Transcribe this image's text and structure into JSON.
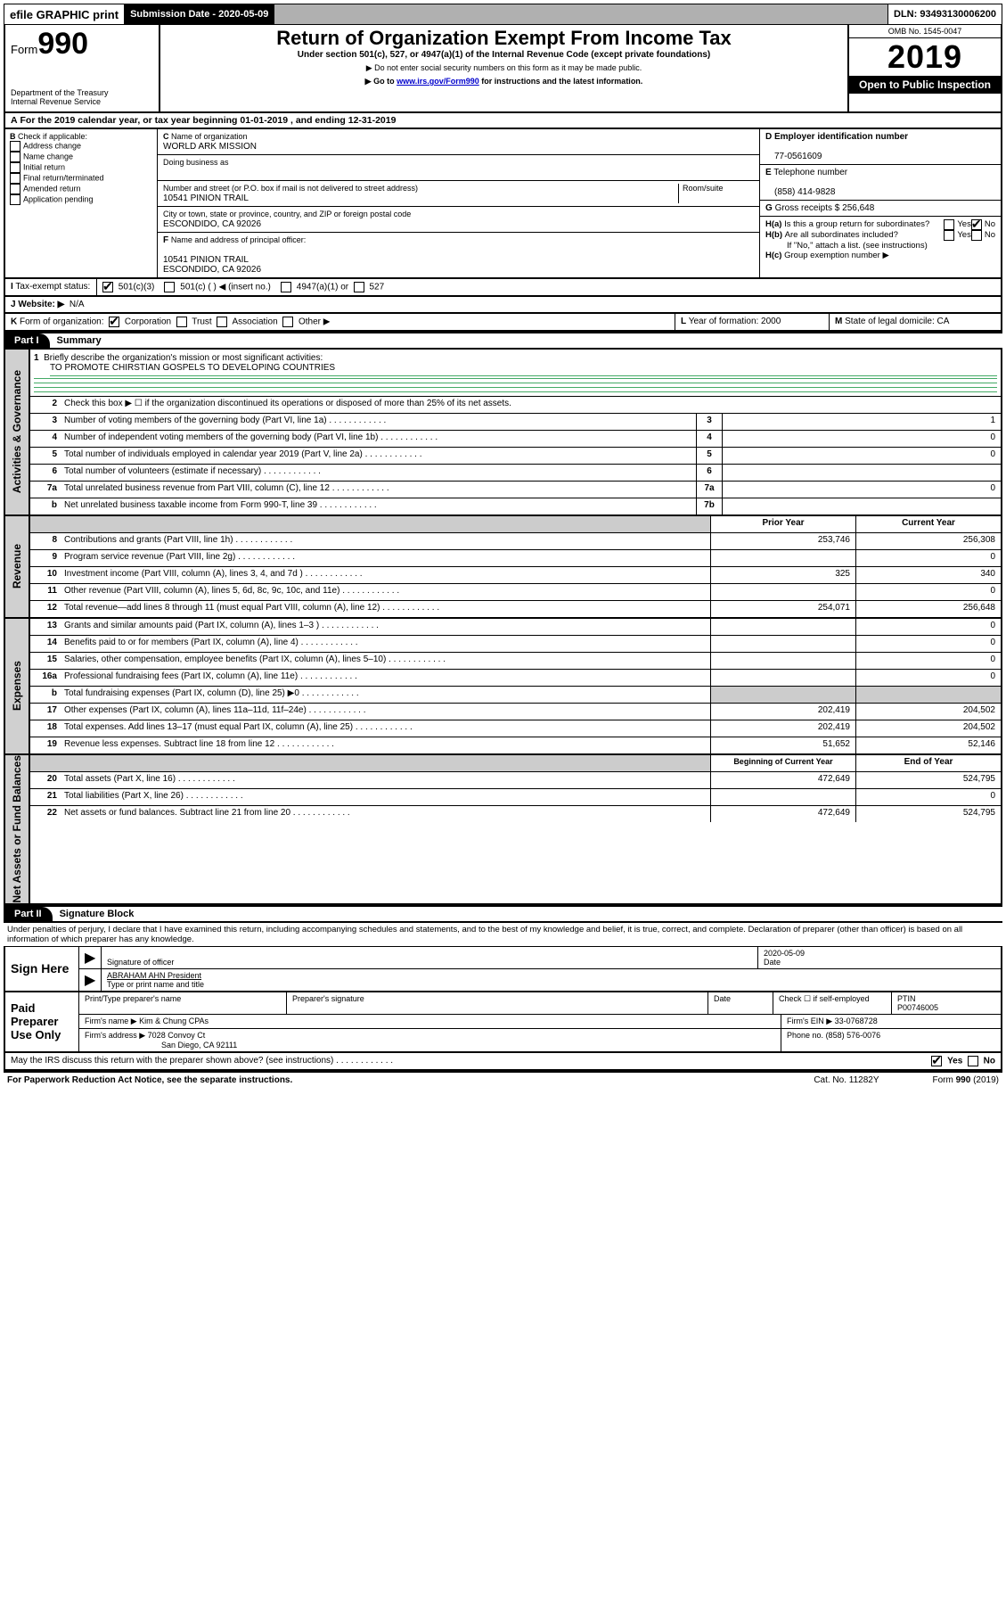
{
  "top": {
    "efile": "efile GRAPHIC print",
    "submission_label": "Submission Date - 2020-05-09",
    "dln": "DLN: 93493130006200"
  },
  "header": {
    "form_prefix": "Form",
    "form_number": "990",
    "title": "Return of Organization Exempt From Income Tax",
    "subtitle": "Under section 501(c), 527, or 4947(a)(1) of the Internal Revenue Code (except private foundations)",
    "note1": "Do not enter social security numbers on this form as it may be made public.",
    "note2_prefix": "Go to ",
    "note2_link": "www.irs.gov/Form990",
    "note2_suffix": " for instructions and the latest information.",
    "dept": "Department of the Treasury",
    "irs": "Internal Revenue Service",
    "omb": "OMB No. 1545-0047",
    "year": "2019",
    "open": "Open to Public Inspection"
  },
  "rowA": "For the 2019 calendar year, or tax year beginning 01-01-2019    , and ending 12-31-2019",
  "boxB": {
    "label": "Check if applicable:",
    "items": [
      "Address change",
      "Name change",
      "Initial return",
      "Final return/terminated",
      "Amended return",
      "Application pending"
    ]
  },
  "boxC": {
    "name_label": "Name of organization",
    "name": "WORLD ARK MISSION",
    "dba_label": "Doing business as",
    "addr_label": "Number and street (or P.O. box if mail is not delivered to street address)",
    "room_label": "Room/suite",
    "addr": "10541 PINION TRAIL",
    "city_label": "City or town, state or province, country, and ZIP or foreign postal code",
    "city": "ESCONDIDO, CA  92026",
    "officer_label": "Name and address of principal officer:",
    "officer_addr1": "10541 PINION TRAIL",
    "officer_addr2": "ESCONDIDO, CA  92026"
  },
  "boxD": {
    "label": "Employer identification number",
    "value": "77-0561609"
  },
  "boxE": {
    "label": "Telephone number",
    "value": "(858) 414-9828"
  },
  "boxG": {
    "label": "Gross receipts $",
    "value": "256,648"
  },
  "boxH": {
    "a": "Is this a group return for subordinates?",
    "b": "Are all subordinates included?",
    "b_note": "If \"No,\" attach a list. (see instructions)",
    "c": "Group exemption number ▶"
  },
  "rowI": {
    "label": "Tax-exempt status:",
    "opts": [
      "501(c)(3)",
      "501(c) (   ) ◀ (insert no.)",
      "4947(a)(1) or",
      "527"
    ]
  },
  "rowJ": {
    "label": "Website: ▶",
    "value": "N/A"
  },
  "rowK": {
    "label": "Form of organization:",
    "opts": [
      "Corporation",
      "Trust",
      "Association",
      "Other ▶"
    ],
    "L": "Year of formation: 2000",
    "M": "State of legal domicile: CA"
  },
  "partI": {
    "header": "Part I",
    "title": "Summary",
    "line1_label": "Briefly describe the organization's mission or most significant activities:",
    "line1_text": "TO PROMOTE CHIRSTIAN GOSPELS TO DEVELOPING COUNTRIES",
    "line2": "Check this box ▶ ☐  if the organization discontinued its operations or disposed of more than 25% of its net assets.",
    "tabs": {
      "gov": "Activities & Governance",
      "rev": "Revenue",
      "exp": "Expenses",
      "net": "Net Assets or Fund Balances"
    },
    "lines_gov": [
      {
        "n": "3",
        "d": "Number of voting members of the governing body (Part VI, line 1a)",
        "box": "3",
        "v": "1"
      },
      {
        "n": "4",
        "d": "Number of independent voting members of the governing body (Part VI, line 1b)",
        "box": "4",
        "v": "0"
      },
      {
        "n": "5",
        "d": "Total number of individuals employed in calendar year 2019 (Part V, line 2a)",
        "box": "5",
        "v": "0"
      },
      {
        "n": "6",
        "d": "Total number of volunteers (estimate if necessary)",
        "box": "6",
        "v": ""
      },
      {
        "n": "7a",
        "d": "Total unrelated business revenue from Part VIII, column (C), line 12",
        "box": "7a",
        "v": "0"
      },
      {
        "n": "b",
        "d": "Net unrelated business taxable income from Form 990-T, line 39",
        "box": "7b",
        "v": ""
      }
    ],
    "col_prior": "Prior Year",
    "col_current": "Current Year",
    "lines_rev": [
      {
        "n": "8",
        "d": "Contributions and grants (Part VIII, line 1h)",
        "p": "253,746",
        "c": "256,308"
      },
      {
        "n": "9",
        "d": "Program service revenue (Part VIII, line 2g)",
        "p": "",
        "c": "0"
      },
      {
        "n": "10",
        "d": "Investment income (Part VIII, column (A), lines 3, 4, and 7d )",
        "p": "325",
        "c": "340"
      },
      {
        "n": "11",
        "d": "Other revenue (Part VIII, column (A), lines 5, 6d, 8c, 9c, 10c, and 11e)",
        "p": "",
        "c": "0"
      },
      {
        "n": "12",
        "d": "Total revenue—add lines 8 through 11 (must equal Part VIII, column (A), line 12)",
        "p": "254,071",
        "c": "256,648"
      }
    ],
    "lines_exp": [
      {
        "n": "13",
        "d": "Grants and similar amounts paid (Part IX, column (A), lines 1–3 )",
        "p": "",
        "c": "0"
      },
      {
        "n": "14",
        "d": "Benefits paid to or for members (Part IX, column (A), line 4)",
        "p": "",
        "c": "0"
      },
      {
        "n": "15",
        "d": "Salaries, other compensation, employee benefits (Part IX, column (A), lines 5–10)",
        "p": "",
        "c": "0"
      },
      {
        "n": "16a",
        "d": "Professional fundraising fees (Part IX, column (A), line 11e)",
        "p": "",
        "c": "0"
      },
      {
        "n": "b",
        "d": "Total fundraising expenses (Part IX, column (D), line 25) ▶0",
        "p": "__SHADE__",
        "c": "__SHADE__"
      },
      {
        "n": "17",
        "d": "Other expenses (Part IX, column (A), lines 11a–11d, 11f–24e)",
        "p": "202,419",
        "c": "204,502"
      },
      {
        "n": "18",
        "d": "Total expenses. Add lines 13–17 (must equal Part IX, column (A), line 25)",
        "p": "202,419",
        "c": "204,502"
      },
      {
        "n": "19",
        "d": "Revenue less expenses. Subtract line 18 from line 12",
        "p": "51,652",
        "c": "52,146"
      }
    ],
    "col_begin": "Beginning of Current Year",
    "col_end": "End of Year",
    "lines_net": [
      {
        "n": "20",
        "d": "Total assets (Part X, line 16)",
        "p": "472,649",
        "c": "524,795"
      },
      {
        "n": "21",
        "d": "Total liabilities (Part X, line 26)",
        "p": "",
        "c": "0"
      },
      {
        "n": "22",
        "d": "Net assets or fund balances. Subtract line 21 from line 20",
        "p": "472,649",
        "c": "524,795"
      }
    ]
  },
  "partII": {
    "header": "Part II",
    "title": "Signature Block",
    "perjury": "Under penalties of perjury, I declare that I have examined this return, including accompanying schedules and statements, and to the best of my knowledge and belief, it is true, correct, and complete. Declaration of preparer (other than officer) is based on all information of which preparer has any knowledge.",
    "sign_here": "Sign Here",
    "sig_officer": "Signature of officer",
    "date_label": "Date",
    "date_value": "2020-05-09",
    "officer_name": "ABRAHAM AHN President",
    "type_name": "Type or print name and title",
    "paid": "Paid Preparer Use Only",
    "prep_name_label": "Print/Type preparer's name",
    "prep_sig_label": "Preparer's signature",
    "check_self": "Check ☐ if self-employed",
    "ptin_label": "PTIN",
    "ptin": "P00746005",
    "firm_name_label": "Firm's name    ▶",
    "firm_name": "Kim & Chung CPAs",
    "firm_ein_label": "Firm's EIN ▶",
    "firm_ein": "33-0768728",
    "firm_addr_label": "Firm's address ▶",
    "firm_addr1": "7028 Convoy Ct",
    "firm_addr2": "San Diego, CA  92111",
    "phone_label": "Phone no.",
    "phone": "(858) 576-0076",
    "discuss": "May the IRS discuss this return with the preparer shown above? (see instructions)"
  },
  "footer": {
    "pra": "For Paperwork Reduction Act Notice, see the separate instructions.",
    "cat": "Cat. No. 11282Y",
    "form": "Form 990 (2019)"
  }
}
